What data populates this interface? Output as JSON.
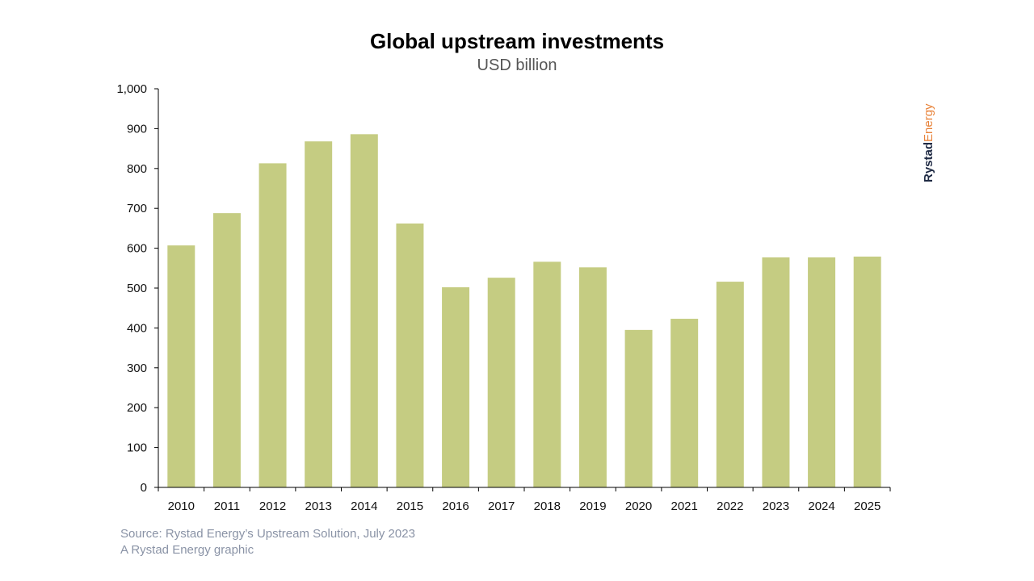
{
  "chart_data": {
    "type": "bar",
    "title": "Global upstream investments",
    "subtitle": "USD billion",
    "categories": [
      "2010",
      "2011",
      "2012",
      "2013",
      "2014",
      "2015",
      "2016",
      "2017",
      "2018",
      "2019",
      "2020",
      "2021",
      "2022",
      "2023",
      "2024",
      "2025"
    ],
    "values": [
      607,
      688,
      813,
      868,
      886,
      662,
      502,
      526,
      566,
      552,
      395,
      423,
      516,
      577,
      577,
      579
    ],
    "ylim": [
      0,
      1000
    ],
    "yticks": [
      0,
      100,
      200,
      300,
      400,
      500,
      600,
      700,
      800,
      900,
      1000
    ],
    "ytick_labels": [
      "0",
      "100",
      "200",
      "300",
      "400",
      "500",
      "600",
      "700",
      "800",
      "900",
      "1,000"
    ],
    "grid": false,
    "bar_color": "#c5cc82",
    "axis_color": "#000000"
  },
  "footer": {
    "source": "Source: Rystad Energy’s Upstream Solution, July 2023",
    "credit": "A Rystad Energy graphic"
  },
  "logo": {
    "part1": "Rystad",
    "part2": "Energy",
    "color1": "#1f2a44",
    "color2": "#e8833a"
  }
}
